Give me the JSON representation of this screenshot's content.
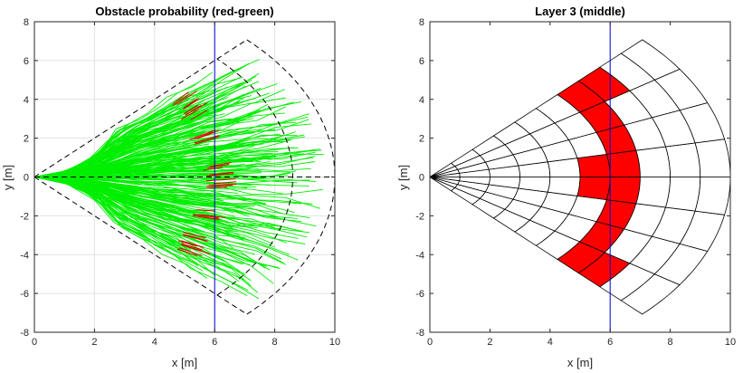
{
  "chart_data": [
    {
      "type": "line",
      "title": "Obstacle probability (red-green)",
      "xlabel": "x [m]",
      "ylabel": "y [m]",
      "xlim": [
        0,
        10
      ],
      "ylim": [
        -8,
        8
      ],
      "xticks": [
        "0",
        "2",
        "4",
        "6",
        "8",
        "10"
      ],
      "yticks": [
        "-8",
        "-6",
        "-4",
        "-2",
        "0",
        "2",
        "4",
        "6",
        "8"
      ],
      "grid": true,
      "series": [
        {
          "color": "#00ee00",
          "description_free": true,
          "sampled_ray_spread_deg": 40,
          "ray_origin": [
            0,
            0
          ],
          "max_range": 10
        },
        {
          "color": "#dd0000"
        }
      ],
      "sensor_boundary": {
        "origin": [
          0,
          0
        ],
        "half_angle_deg": 45,
        "range": 10,
        "inner_arc_range": 8.6,
        "center_axis_y": 0
      },
      "reference_line": {
        "x": 6,
        "color": "#0000cc"
      }
    },
    {
      "type": "heatmap",
      "title": "Layer 3 (middle)",
      "xlabel": "x [m]",
      "ylabel": "y [m]",
      "xlim": [
        0,
        10
      ],
      "ylim": [
        -8,
        8
      ],
      "xticks": [
        "0",
        "2",
        "4",
        "6",
        "8",
        "10"
      ],
      "yticks": [
        "-8",
        "-6",
        "-4",
        "-2",
        "0",
        "2",
        "4",
        "6",
        "8"
      ],
      "grid": false,
      "polar_grid": {
        "origin": [
          0,
          0
        ],
        "radii": [
          1,
          2,
          3,
          4,
          5,
          6,
          7,
          8,
          9,
          10
        ],
        "angles_deg": [
          -45,
          -33.75,
          -22.5,
          -11.25,
          0,
          11.25,
          22.5,
          33.75,
          45
        ],
        "occupied_cells": [
          {
            "r": [
              5,
              6
            ],
            "theta_deg": [
              -11.25,
              11.25
            ]
          },
          {
            "r": [
              6,
              7
            ],
            "theta_deg": [
              -22.5,
              22.5
            ]
          },
          {
            "r": [
              6,
              7
            ],
            "theta_deg": [
              -45,
              -33.75
            ]
          },
          {
            "r": [
              7,
              8
            ],
            "theta_deg": [
              -45,
              -33.75
            ]
          },
          {
            "r": [
              6,
              7
            ],
            "theta_deg": [
              33.75,
              45
            ]
          },
          {
            "r": [
              7,
              8
            ],
            "theta_deg": [
              33.75,
              45
            ]
          },
          {
            "r": [
              6,
              7
            ],
            "theta_deg": [
              22.5,
              33.75
            ]
          },
          {
            "r": [
              6,
              7
            ],
            "theta_deg": [
              -33.75,
              -22.5
            ]
          }
        ],
        "occupied_color": "#ff0000",
        "free_color": "#ffffff"
      },
      "reference_line": {
        "x": 6,
        "color": "#0000cc"
      }
    }
  ]
}
